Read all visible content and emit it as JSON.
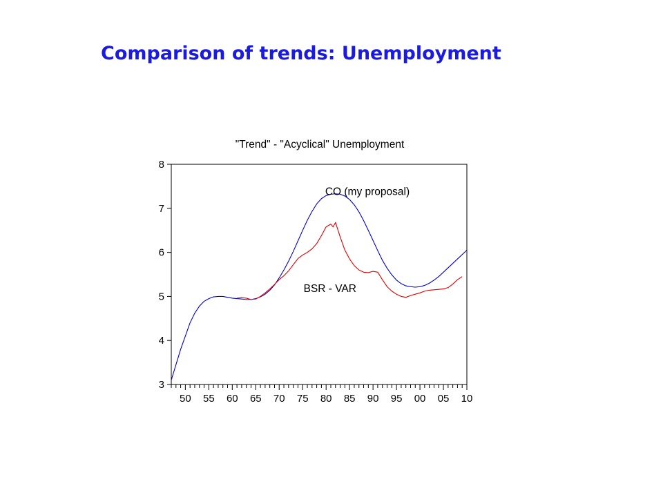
{
  "slide": {
    "title": "Comparison of trends: Unemployment"
  },
  "chart_data": {
    "type": "line",
    "title": "\"Trend\" - \"Acyclical\" Unemployment",
    "xlabel": "",
    "ylabel": "",
    "xlim": [
      1947,
      2010
    ],
    "ylim": [
      3,
      8
    ],
    "x_ticks": [
      {
        "value": 1950,
        "label": "50"
      },
      {
        "value": 1955,
        "label": "55"
      },
      {
        "value": 1960,
        "label": "60"
      },
      {
        "value": 1965,
        "label": "65"
      },
      {
        "value": 1970,
        "label": "70"
      },
      {
        "value": 1975,
        "label": "75"
      },
      {
        "value": 1980,
        "label": "80"
      },
      {
        "value": 1985,
        "label": "85"
      },
      {
        "value": 1990,
        "label": "90"
      },
      {
        "value": 1995,
        "label": "95"
      },
      {
        "value": 2000,
        "label": "00"
      },
      {
        "value": 2005,
        "label": "05"
      },
      {
        "value": 2010,
        "label": "10"
      }
    ],
    "y_ticks": [
      3,
      4,
      5,
      6,
      7,
      8
    ],
    "grid": false,
    "legend": "none",
    "series": [
      {
        "name": "CO (my proposal)",
        "color": "#0000cc",
        "x": [
          1947,
          1948,
          1949,
          1950,
          1951,
          1952,
          1953,
          1954,
          1955,
          1956,
          1957,
          1958,
          1959,
          1960,
          1961,
          1962,
          1963,
          1964,
          1965,
          1966,
          1967,
          1968,
          1969,
          1970,
          1971,
          1972,
          1973,
          1974,
          1975,
          1976,
          1977,
          1978,
          1979,
          1980,
          1981,
          1982,
          1983,
          1984,
          1985,
          1986,
          1987,
          1988,
          1989,
          1990,
          1991,
          1992,
          1993,
          1994,
          1995,
          1996,
          1997,
          1998,
          1999,
          2000,
          2001,
          2002,
          2003,
          2004,
          2005,
          2006,
          2007,
          2008,
          2009,
          2010
        ],
        "y": [
          3.1,
          3.45,
          3.8,
          4.1,
          4.4,
          4.62,
          4.78,
          4.89,
          4.95,
          4.99,
          5.0,
          5.0,
          4.98,
          4.96,
          4.95,
          4.94,
          4.93,
          4.93,
          4.95,
          4.99,
          5.05,
          5.14,
          5.26,
          5.42,
          5.6,
          5.8,
          6.02,
          6.26,
          6.5,
          6.73,
          6.93,
          7.1,
          7.22,
          7.29,
          7.32,
          7.33,
          7.32,
          7.28,
          7.2,
          7.08,
          6.92,
          6.72,
          6.5,
          6.27,
          6.04,
          5.82,
          5.64,
          5.49,
          5.37,
          5.29,
          5.24,
          5.22,
          5.21,
          5.22,
          5.25,
          5.3,
          5.37,
          5.45,
          5.55,
          5.65,
          5.75,
          5.85,
          5.95,
          6.05
        ]
      },
      {
        "name": "BSR - VAR",
        "color": "#dd0000",
        "x": [
          1961,
          1962,
          1963,
          1964,
          1965,
          1966,
          1967,
          1968,
          1969,
          1970,
          1971,
          1972,
          1973,
          1974,
          1975,
          1976,
          1977,
          1978,
          1979,
          1980,
          1981,
          1981.5,
          1982,
          1983,
          1984,
          1985,
          1986,
          1987,
          1988,
          1989,
          1990,
          1991,
          1992,
          1993,
          1994,
          1995,
          1996,
          1997,
          1998,
          1999,
          2000,
          2001,
          2002,
          2003,
          2004,
          2005,
          2006,
          2007,
          2008,
          2009
        ],
        "y": [
          4.96,
          4.97,
          4.96,
          4.93,
          4.94,
          5.0,
          5.08,
          5.17,
          5.27,
          5.38,
          5.47,
          5.58,
          5.72,
          5.86,
          5.94,
          6.0,
          6.08,
          6.2,
          6.38,
          6.58,
          6.64,
          6.58,
          6.68,
          6.35,
          6.05,
          5.85,
          5.7,
          5.6,
          5.55,
          5.54,
          5.57,
          5.55,
          5.38,
          5.22,
          5.12,
          5.05,
          5.0,
          4.98,
          5.02,
          5.05,
          5.08,
          5.12,
          5.14,
          5.15,
          5.16,
          5.17,
          5.2,
          5.28,
          5.38,
          5.45
        ]
      }
    ],
    "annotations": [
      {
        "text": "CO (my proposal)",
        "x": 1979.8,
        "y": 7.3
      },
      {
        "text": "BSR - VAR",
        "x": 1975.2,
        "y": 5.1
      }
    ]
  }
}
